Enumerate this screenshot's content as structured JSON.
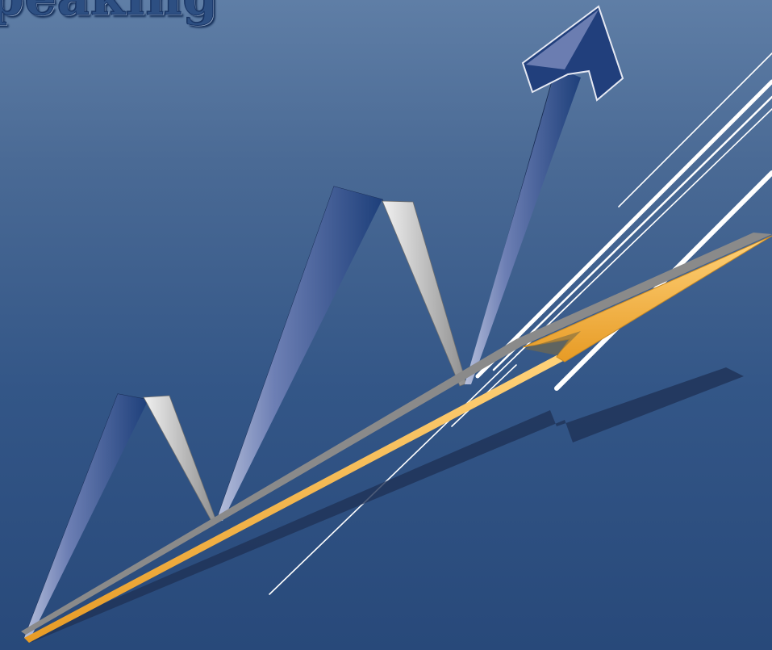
{
  "slide": {
    "title_fragment": "peaking"
  },
  "colors": {
    "background_top": "#5f7ea6",
    "background_bottom": "#28497a",
    "zigzag_arrow": "#203f78",
    "zigzag_highlight": "#a9b4d2",
    "trend_arrow": "#f3b447",
    "trend_arrow_edge": "#8a8a8a",
    "shadow": "#1f3256",
    "lines": "#ffffff"
  },
  "icons": [
    "zigzag-arrow-icon",
    "trend-arrow-icon"
  ]
}
